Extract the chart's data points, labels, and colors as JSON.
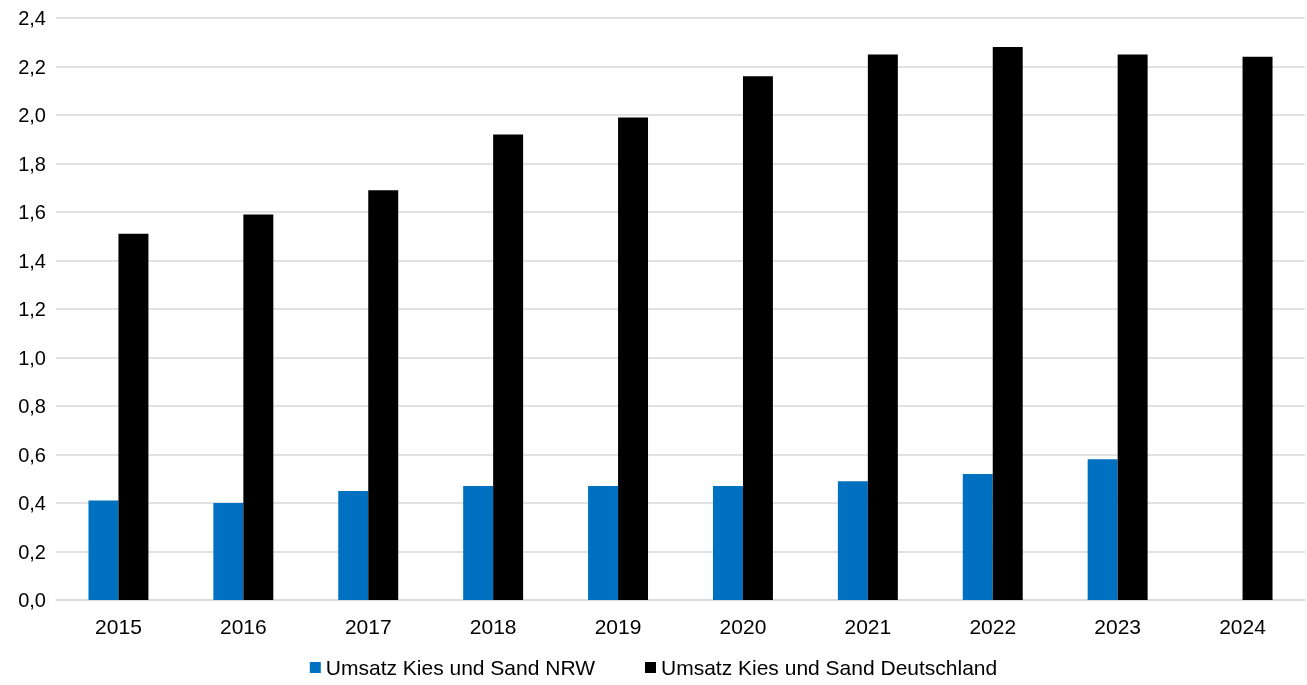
{
  "chart_data": {
    "type": "bar",
    "categories": [
      "2015",
      "2016",
      "2017",
      "2018",
      "2019",
      "2020",
      "2021",
      "2022",
      "2023",
      "2024"
    ],
    "series": [
      {
        "name": "Umsatz Kies und Sand NRW",
        "color": "#0070c0",
        "values": [
          0.41,
          0.4,
          0.45,
          0.47,
          0.47,
          0.47,
          0.49,
          0.52,
          0.58,
          null
        ]
      },
      {
        "name": "Umsatz Kies und Sand Deutschland",
        "color": "#000000",
        "values": [
          1.51,
          1.59,
          1.69,
          1.92,
          1.99,
          2.16,
          2.25,
          2.28,
          2.25,
          2.24
        ]
      }
    ],
    "ylim": [
      0,
      2.4
    ],
    "yticks": [
      {
        "value": 0,
        "label": "0,0"
      },
      {
        "value": 0.2,
        "label": "0,2"
      },
      {
        "value": 0.4,
        "label": "0,4"
      },
      {
        "value": 0.6,
        "label": "0,6"
      },
      {
        "value": 0.8,
        "label": "0,8"
      },
      {
        "value": 1.0,
        "label": "1,0"
      },
      {
        "value": 1.2,
        "label": "1,2"
      },
      {
        "value": 1.4,
        "label": "1,4"
      },
      {
        "value": 1.6,
        "label": "1,6"
      },
      {
        "value": 1.8,
        "label": "1,8"
      },
      {
        "value": 2.0,
        "label": "2,0"
      },
      {
        "value": 2.2,
        "label": "2,2"
      },
      {
        "value": 2.4,
        "label": "2,4"
      }
    ],
    "grid": "y",
    "legend": "bottom"
  }
}
